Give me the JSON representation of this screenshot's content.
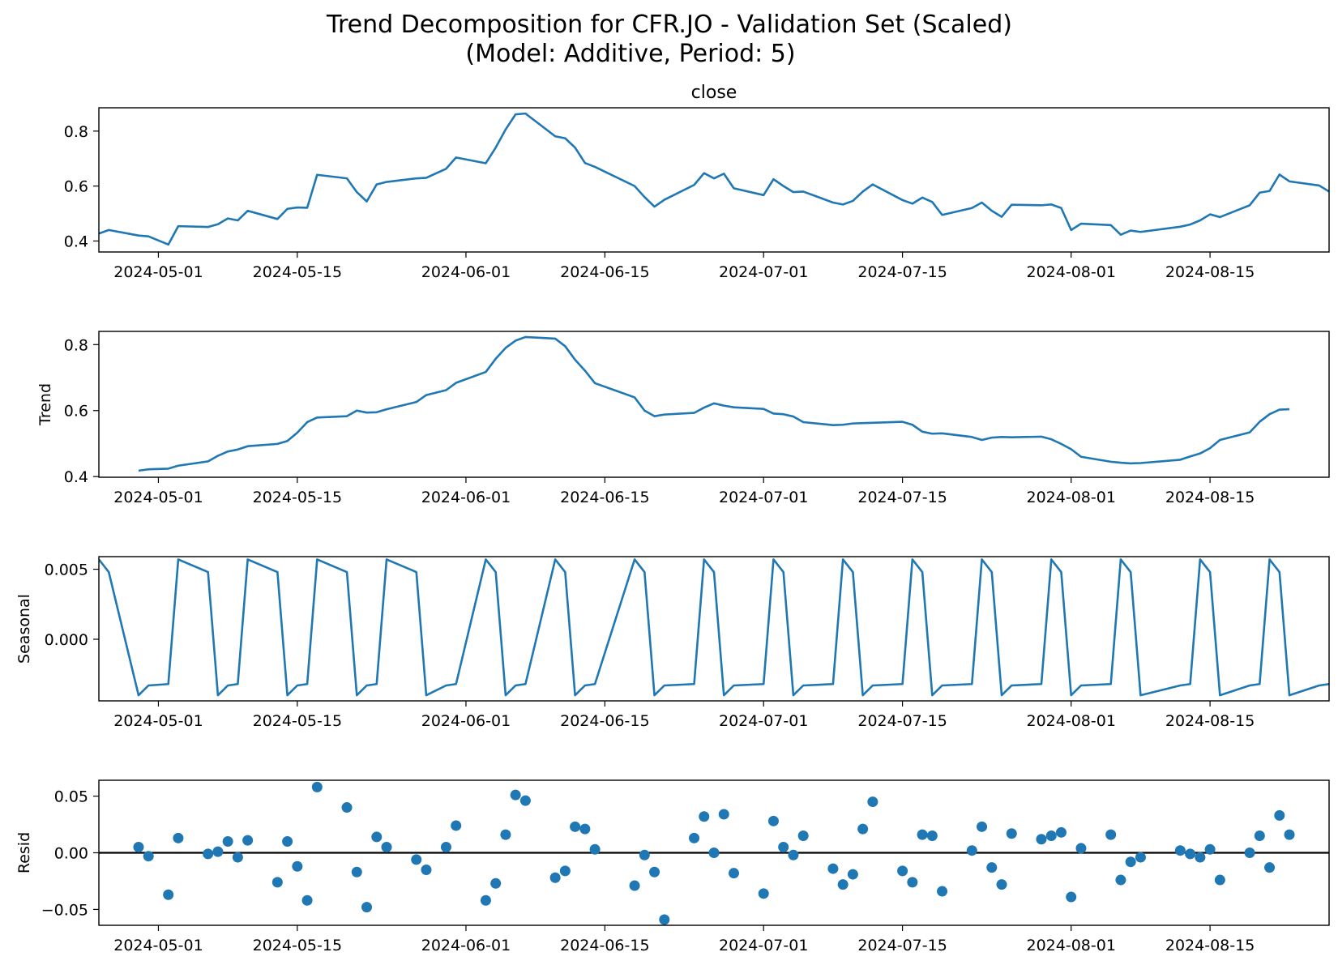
{
  "title_line1": "Trend Decomposition for CFR.JO - Validation Set (Scaled)",
  "title_line2": "(Model: Additive, Period: 5)",
  "colors": {
    "series": "#1f77b4",
    "zero_line": "#000000"
  },
  "chart_data": [
    {
      "id": "close",
      "type": "line",
      "title": "close",
      "ylabel": "",
      "xlim": [
        "2024-04-25",
        "2024-08-27"
      ],
      "ylim": [
        0.36,
        0.885
      ],
      "yticks": [
        0.4,
        0.6,
        0.8
      ],
      "ytick_labels": [
        "0.4",
        "0.6",
        "0.8"
      ],
      "xticks": [
        "2024-05-01",
        "2024-05-15",
        "2024-06-01",
        "2024-06-15",
        "2024-07-01",
        "2024-07-15",
        "2024-08-01",
        "2024-08-15"
      ],
      "x": [
        "2024-04-25",
        "2024-04-26",
        "2024-04-29",
        "2024-04-30",
        "2024-05-02",
        "2024-05-03",
        "2024-05-06",
        "2024-05-07",
        "2024-05-08",
        "2024-05-09",
        "2024-05-10",
        "2024-05-13",
        "2024-05-14",
        "2024-05-15",
        "2024-05-16",
        "2024-05-17",
        "2024-05-20",
        "2024-05-21",
        "2024-05-22",
        "2024-05-23",
        "2024-05-24",
        "2024-05-27",
        "2024-05-28",
        "2024-05-30",
        "2024-05-31",
        "2024-06-03",
        "2024-06-04",
        "2024-06-05",
        "2024-06-06",
        "2024-06-07",
        "2024-06-10",
        "2024-06-11",
        "2024-06-12",
        "2024-06-13",
        "2024-06-14",
        "2024-06-18",
        "2024-06-19",
        "2024-06-20",
        "2024-06-21",
        "2024-06-24",
        "2024-06-25",
        "2024-06-26",
        "2024-06-27",
        "2024-06-28",
        "2024-07-01",
        "2024-07-02",
        "2024-07-03",
        "2024-07-04",
        "2024-07-05",
        "2024-07-08",
        "2024-07-09",
        "2024-07-10",
        "2024-07-11",
        "2024-07-12",
        "2024-07-15",
        "2024-07-16",
        "2024-07-17",
        "2024-07-18",
        "2024-07-19",
        "2024-07-22",
        "2024-07-23",
        "2024-07-24",
        "2024-07-25",
        "2024-07-26",
        "2024-07-29",
        "2024-07-30",
        "2024-07-31",
        "2024-08-01",
        "2024-08-02",
        "2024-08-05",
        "2024-08-06",
        "2024-08-07",
        "2024-08-08",
        "2024-08-12",
        "2024-08-13",
        "2024-08-14",
        "2024-08-15",
        "2024-08-16",
        "2024-08-19",
        "2024-08-20",
        "2024-08-21",
        "2024-08-22",
        "2024-08-23",
        "2024-08-26",
        "2024-08-27"
      ],
      "y": [
        0.427,
        0.44,
        0.42,
        0.417,
        0.387,
        0.454,
        0.451,
        0.461,
        0.482,
        0.475,
        0.51,
        0.48,
        0.517,
        0.522,
        0.521,
        0.641,
        0.628,
        0.578,
        0.544,
        0.606,
        0.615,
        0.628,
        0.63,
        0.663,
        0.704,
        0.683,
        0.74,
        0.806,
        0.861,
        0.864,
        0.781,
        0.774,
        0.74,
        0.684,
        0.67,
        0.6,
        0.56,
        0.525,
        0.55,
        0.604,
        0.647,
        0.628,
        0.645,
        0.592,
        0.567,
        0.625,
        0.6,
        0.578,
        0.58,
        0.54,
        0.533,
        0.546,
        0.58,
        0.606,
        0.549,
        0.536,
        0.558,
        0.542,
        0.495,
        0.52,
        0.54,
        0.51,
        0.488,
        0.532,
        0.53,
        0.533,
        0.52,
        0.44,
        0.463,
        0.458,
        0.423,
        0.438,
        0.433,
        0.452,
        0.46,
        0.475,
        0.497,
        0.487,
        0.53,
        0.576,
        0.582,
        0.642,
        0.617,
        0.602,
        0.58
      ]
    },
    {
      "id": "trend",
      "type": "line",
      "title": "",
      "ylabel": "Trend",
      "xlim": [
        "2024-04-25",
        "2024-08-27"
      ],
      "ylim": [
        0.398,
        0.84
      ],
      "yticks": [
        0.4,
        0.6,
        0.8
      ],
      "ytick_labels": [
        "0.4",
        "0.6",
        "0.8"
      ],
      "xticks": [
        "2024-05-01",
        "2024-05-15",
        "2024-06-01",
        "2024-06-15",
        "2024-07-01",
        "2024-07-15",
        "2024-08-01",
        "2024-08-15"
      ],
      "x": [
        "2024-04-29",
        "2024-04-30",
        "2024-05-02",
        "2024-05-03",
        "2024-05-06",
        "2024-05-07",
        "2024-05-08",
        "2024-05-09",
        "2024-05-10",
        "2024-05-13",
        "2024-05-14",
        "2024-05-15",
        "2024-05-16",
        "2024-05-17",
        "2024-05-20",
        "2024-05-21",
        "2024-05-22",
        "2024-05-23",
        "2024-05-24",
        "2024-05-27",
        "2024-05-28",
        "2024-05-30",
        "2024-05-31",
        "2024-06-03",
        "2024-06-04",
        "2024-06-05",
        "2024-06-06",
        "2024-06-07",
        "2024-06-10",
        "2024-06-11",
        "2024-06-12",
        "2024-06-13",
        "2024-06-14",
        "2024-06-18",
        "2024-06-19",
        "2024-06-20",
        "2024-06-21",
        "2024-06-24",
        "2024-06-25",
        "2024-06-26",
        "2024-06-27",
        "2024-06-28",
        "2024-07-01",
        "2024-07-02",
        "2024-07-03",
        "2024-07-04",
        "2024-07-05",
        "2024-07-08",
        "2024-07-09",
        "2024-07-10",
        "2024-07-11",
        "2024-07-12",
        "2024-07-15",
        "2024-07-16",
        "2024-07-17",
        "2024-07-18",
        "2024-07-19",
        "2024-07-22",
        "2024-07-23",
        "2024-07-24",
        "2024-07-25",
        "2024-07-26",
        "2024-07-29",
        "2024-07-30",
        "2024-07-31",
        "2024-08-01",
        "2024-08-02",
        "2024-08-05",
        "2024-08-06",
        "2024-08-07",
        "2024-08-08",
        "2024-08-12",
        "2024-08-13",
        "2024-08-14",
        "2024-08-15",
        "2024-08-16",
        "2024-08-19",
        "2024-08-20",
        "2024-08-21",
        "2024-08-22",
        "2024-08-23"
      ],
      "y": [
        0.418,
        0.422,
        0.424,
        0.433,
        0.446,
        0.463,
        0.476,
        0.482,
        0.492,
        0.499,
        0.508,
        0.533,
        0.565,
        0.579,
        0.583,
        0.6,
        0.594,
        0.595,
        0.604,
        0.626,
        0.647,
        0.662,
        0.684,
        0.717,
        0.757,
        0.79,
        0.812,
        0.823,
        0.818,
        0.795,
        0.754,
        0.721,
        0.683,
        0.64,
        0.6,
        0.583,
        0.588,
        0.593,
        0.609,
        0.622,
        0.615,
        0.61,
        0.605,
        0.591,
        0.589,
        0.582,
        0.565,
        0.556,
        0.557,
        0.561,
        0.562,
        0.563,
        0.566,
        0.557,
        0.536,
        0.53,
        0.531,
        0.52,
        0.511,
        0.518,
        0.52,
        0.519,
        0.521,
        0.513,
        0.499,
        0.483,
        0.46,
        0.445,
        0.442,
        0.44,
        0.441,
        0.451,
        0.461,
        0.47,
        0.486,
        0.511,
        0.534,
        0.566,
        0.589,
        0.603,
        0.604
      ]
    },
    {
      "id": "seasonal",
      "type": "line",
      "title": "",
      "ylabel": "Seasonal",
      "xlim": [
        "2024-04-25",
        "2024-08-27"
      ],
      "ylim": [
        -0.0044,
        0.0059
      ],
      "yticks": [
        0.0,
        0.005
      ],
      "ytick_labels": [
        "0.000",
        "0.005"
      ],
      "xticks": [
        "2024-05-01",
        "2024-05-15",
        "2024-06-01",
        "2024-06-15",
        "2024-07-01",
        "2024-07-15",
        "2024-08-01",
        "2024-08-15"
      ],
      "pattern": [
        0.0057,
        0.0048,
        -0.004,
        -0.0033,
        -0.0032
      ],
      "x": [
        "2024-04-25",
        "2024-04-26",
        "2024-04-29",
        "2024-04-30",
        "2024-05-02",
        "2024-05-03",
        "2024-05-06",
        "2024-05-07",
        "2024-05-08",
        "2024-05-09",
        "2024-05-10",
        "2024-05-13",
        "2024-05-14",
        "2024-05-15",
        "2024-05-16",
        "2024-05-17",
        "2024-05-20",
        "2024-05-21",
        "2024-05-22",
        "2024-05-23",
        "2024-05-24",
        "2024-05-27",
        "2024-05-28",
        "2024-05-30",
        "2024-05-31",
        "2024-06-03",
        "2024-06-04",
        "2024-06-05",
        "2024-06-06",
        "2024-06-07",
        "2024-06-10",
        "2024-06-11",
        "2024-06-12",
        "2024-06-13",
        "2024-06-14",
        "2024-06-18",
        "2024-06-19",
        "2024-06-20",
        "2024-06-21",
        "2024-06-24",
        "2024-06-25",
        "2024-06-26",
        "2024-06-27",
        "2024-06-28",
        "2024-07-01",
        "2024-07-02",
        "2024-07-03",
        "2024-07-04",
        "2024-07-05",
        "2024-07-08",
        "2024-07-09",
        "2024-07-10",
        "2024-07-11",
        "2024-07-12",
        "2024-07-15",
        "2024-07-16",
        "2024-07-17",
        "2024-07-18",
        "2024-07-19",
        "2024-07-22",
        "2024-07-23",
        "2024-07-24",
        "2024-07-25",
        "2024-07-26",
        "2024-07-29",
        "2024-07-30",
        "2024-07-31",
        "2024-08-01",
        "2024-08-02",
        "2024-08-05",
        "2024-08-06",
        "2024-08-07",
        "2024-08-08",
        "2024-08-12",
        "2024-08-13",
        "2024-08-14",
        "2024-08-15",
        "2024-08-16",
        "2024-08-19",
        "2024-08-20",
        "2024-08-21",
        "2024-08-22",
        "2024-08-23",
        "2024-08-26",
        "2024-08-27"
      ]
    },
    {
      "id": "resid",
      "type": "scatter",
      "title": "",
      "ylabel": "Resid",
      "xlim": [
        "2024-04-25",
        "2024-08-27"
      ],
      "ylim": [
        -0.064,
        0.064
      ],
      "yticks": [
        -0.05,
        0.0,
        0.05
      ],
      "ytick_labels": [
        "−0.05",
        "0.00",
        "0.05"
      ],
      "xticks": [
        "2024-05-01",
        "2024-05-15",
        "2024-06-01",
        "2024-06-15",
        "2024-07-01",
        "2024-07-15",
        "2024-08-01",
        "2024-08-15"
      ],
      "zero_line": 0,
      "x": [
        "2024-04-29",
        "2024-04-30",
        "2024-05-02",
        "2024-05-03",
        "2024-05-06",
        "2024-05-07",
        "2024-05-08",
        "2024-05-09",
        "2024-05-10",
        "2024-05-13",
        "2024-05-14",
        "2024-05-15",
        "2024-05-16",
        "2024-05-17",
        "2024-05-20",
        "2024-05-21",
        "2024-05-22",
        "2024-05-23",
        "2024-05-24",
        "2024-05-27",
        "2024-05-28",
        "2024-05-30",
        "2024-05-31",
        "2024-06-03",
        "2024-06-04",
        "2024-06-05",
        "2024-06-06",
        "2024-06-07",
        "2024-06-10",
        "2024-06-11",
        "2024-06-12",
        "2024-06-13",
        "2024-06-14",
        "2024-06-18",
        "2024-06-19",
        "2024-06-20",
        "2024-06-21",
        "2024-06-24",
        "2024-06-25",
        "2024-06-26",
        "2024-06-27",
        "2024-06-28",
        "2024-07-01",
        "2024-07-02",
        "2024-07-03",
        "2024-07-04",
        "2024-07-05",
        "2024-07-08",
        "2024-07-09",
        "2024-07-10",
        "2024-07-11",
        "2024-07-12",
        "2024-07-15",
        "2024-07-16",
        "2024-07-17",
        "2024-07-18",
        "2024-07-19",
        "2024-07-22",
        "2024-07-23",
        "2024-07-24",
        "2024-07-25",
        "2024-07-26",
        "2024-07-29",
        "2024-07-30",
        "2024-07-31",
        "2024-08-01",
        "2024-08-02",
        "2024-08-05",
        "2024-08-06",
        "2024-08-07",
        "2024-08-08",
        "2024-08-12",
        "2024-08-13",
        "2024-08-14",
        "2024-08-15",
        "2024-08-16",
        "2024-08-19",
        "2024-08-20",
        "2024-08-21",
        "2024-08-22",
        "2024-08-23"
      ],
      "y": [
        0.005,
        -0.003,
        -0.037,
        0.013,
        -0.001,
        0.001,
        0.01,
        -0.004,
        0.011,
        -0.026,
        0.01,
        -0.012,
        -0.042,
        0.058,
        0.04,
        -0.017,
        -0.048,
        0.014,
        0.005,
        -0.006,
        -0.015,
        0.005,
        0.024,
        -0.042,
        -0.027,
        0.016,
        0.051,
        0.046,
        -0.022,
        -0.016,
        0.023,
        0.021,
        0.003,
        -0.029,
        -0.002,
        -0.017,
        -0.059,
        0.013,
        0.032,
        0.0,
        0.034,
        -0.018,
        -0.036,
        0.028,
        0.005,
        -0.002,
        0.015,
        -0.014,
        -0.028,
        -0.019,
        0.021,
        0.045,
        -0.016,
        -0.026,
        0.016,
        0.015,
        -0.034,
        0.002,
        0.023,
        -0.013,
        -0.028,
        0.017,
        0.012,
        0.015,
        0.018,
        -0.039,
        0.004,
        0.016,
        -0.024,
        -0.008,
        -0.004,
        0.002,
        -0.001,
        -0.004,
        0.003,
        -0.024,
        0.0,
        0.015,
        -0.013,
        0.033,
        0.016
      ]
    }
  ]
}
